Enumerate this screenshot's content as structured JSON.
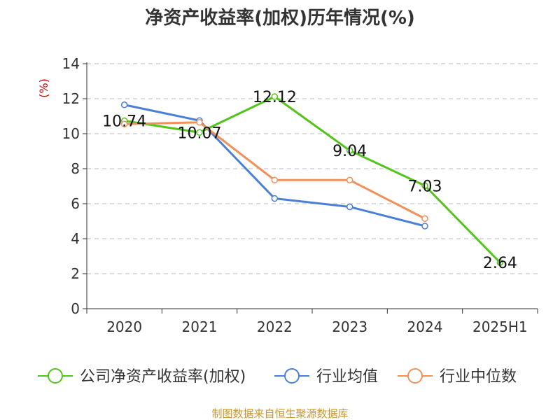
{
  "chart_data": {
    "type": "line",
    "title": "净资产收益率(加权)历年情况(%)",
    "ylabel": "(%)",
    "categories": [
      "2020",
      "2021",
      "2022",
      "2023",
      "2024",
      "2025H1"
    ],
    "ylim": [
      0,
      14
    ],
    "yticks": [
      0,
      2,
      4,
      6,
      8,
      10,
      12,
      14
    ],
    "grid": true,
    "legend_position": "bottom",
    "series": [
      {
        "name": "公司净资产收益率(加权)",
        "color": "#52c41a",
        "values": [
          10.74,
          10.07,
          12.12,
          9.04,
          7.03,
          2.64
        ],
        "labels": [
          "10.74",
          "10.07",
          "12.12",
          "9.04",
          "7.03",
          "2.64"
        ]
      },
      {
        "name": "行业均值",
        "color": "#4a7fd6",
        "values": [
          11.65,
          10.75,
          6.3,
          5.82,
          4.72,
          null
        ]
      },
      {
        "name": "行业中位数",
        "color": "#f0915a",
        "values": [
          10.55,
          10.65,
          7.35,
          7.35,
          5.15,
          null
        ]
      }
    ]
  },
  "footer": {
    "source": "制图数据来自恒生聚源数据库",
    "source_color": "#c8962c"
  },
  "colors": {
    "ylabel": "#cc0000",
    "axis": "#333333",
    "grid": "#bbbbbb"
  }
}
